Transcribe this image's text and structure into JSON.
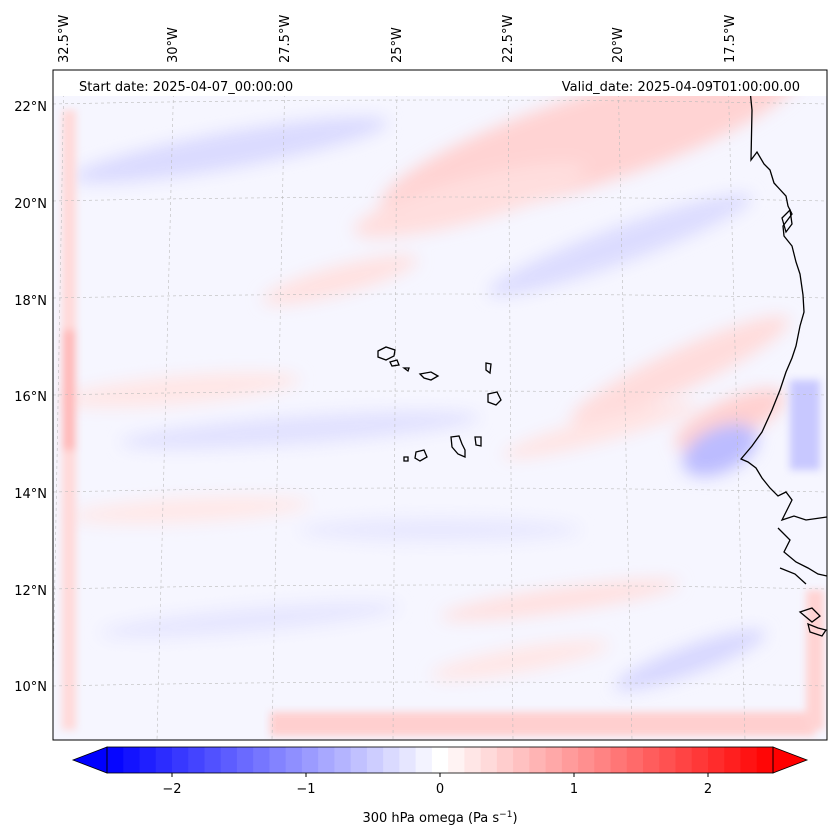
{
  "map": {
    "start_date_text": "Start date: 2025-04-07_00:00:00",
    "valid_date_text": "Valid_date: 2025-04-09T01:00:00.00",
    "lat_labels": [
      "22°N",
      "20°N",
      "18°N",
      "16°N",
      "14°N",
      "12°N",
      "10°N"
    ],
    "lon_labels": [
      "32.5°W",
      "30°W",
      "27.5°W",
      "25°W",
      "22.5°W",
      "20°W",
      "17.5°W"
    ],
    "extent": {
      "lon_min": -33.0,
      "lon_max": -15.5,
      "lat_min": 9.0,
      "lat_max": 22.8
    }
  },
  "colorbar": {
    "label_main": "300 hPa omega (Pa s",
    "label_exp": "−1",
    "label_close": ")",
    "ticks": [
      "−2",
      "−1",
      "0",
      "1",
      "2"
    ],
    "range": [
      -2.75,
      2.75
    ],
    "colors": {
      "negative": "#0000ff",
      "zero": "#ffffff",
      "positive": "#ff0000"
    }
  }
}
